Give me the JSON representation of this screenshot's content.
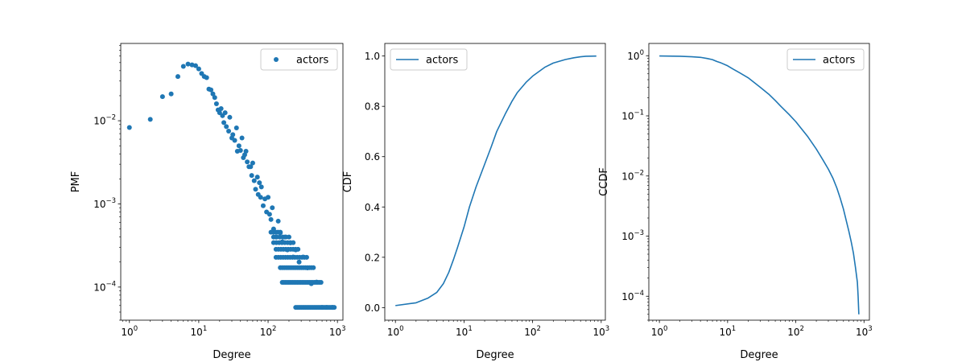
{
  "chart_data": [
    {
      "type": "scatter",
      "xlabel": "Degree",
      "ylabel": "PMF",
      "xscale": "log",
      "yscale": "log",
      "xlim": [
        0.75,
        1200
      ],
      "ylim": [
        4e-05,
        0.085
      ],
      "xticks": [
        {
          "value": 1,
          "base": "10",
          "exp": "0"
        },
        {
          "value": 10,
          "base": "10",
          "exp": "1"
        },
        {
          "value": 100,
          "base": "10",
          "exp": "2"
        },
        {
          "value": 1000,
          "base": "10",
          "exp": "3"
        }
      ],
      "yticks": [
        {
          "value": 0.0001,
          "base": "10",
          "exp": "−4"
        },
        {
          "value": 0.001,
          "base": "10",
          "exp": "−3"
        },
        {
          "value": 0.01,
          "base": "10",
          "exp": "−2"
        }
      ],
      "legend": {
        "position": "top-right"
      },
      "series": [
        {
          "name": "actors",
          "color": "#1f77b4",
          "points": [
            [
              1,
              0.0083
            ],
            [
              2,
              0.0104
            ],
            [
              3,
              0.0195
            ],
            [
              4,
              0.021
            ],
            [
              5,
              0.034
            ],
            [
              6,
              0.045
            ],
            [
              7,
              0.048
            ],
            [
              8,
              0.047
            ],
            [
              9,
              0.046
            ],
            [
              10,
              0.042
            ],
            [
              11,
              0.037
            ],
            [
              12,
              0.034
            ],
            [
              13,
              0.033
            ],
            [
              14,
              0.024
            ],
            [
              15,
              0.0235
            ],
            [
              16,
              0.021
            ],
            [
              17,
              0.019
            ],
            [
              18,
              0.016
            ],
            [
              19,
              0.0135
            ],
            [
              20,
              0.0125
            ],
            [
              21,
              0.014
            ],
            [
              22,
              0.0115
            ],
            [
              23,
              0.0095
            ],
            [
              24,
              0.0125
            ],
            [
              25,
              0.0085
            ],
            [
              27,
              0.0075
            ],
            [
              28,
              0.011
            ],
            [
              30,
              0.0062
            ],
            [
              31,
              0.0068
            ],
            [
              33,
              0.0058
            ],
            [
              35,
              0.0082
            ],
            [
              36,
              0.0043
            ],
            [
              38,
              0.005
            ],
            [
              40,
              0.0044
            ],
            [
              42,
              0.0062
            ],
            [
              44,
              0.0036
            ],
            [
              46,
              0.0039
            ],
            [
              48,
              0.0043
            ],
            [
              50,
              0.0032
            ],
            [
              53,
              0.0028
            ],
            [
              56,
              0.0028
            ],
            [
              58,
              0.0022
            ],
            [
              60,
              0.0031
            ],
            [
              63,
              0.0019
            ],
            [
              66,
              0.0015
            ],
            [
              70,
              0.0021
            ],
            [
              72,
              0.0013
            ],
            [
              75,
              0.0018
            ],
            [
              78,
              0.0012
            ],
            [
              80,
              0.0016
            ],
            [
              85,
              0.00095
            ],
            [
              90,
              0.00115
            ],
            [
              95,
              0.0008
            ],
            [
              100,
              0.0012
            ],
            [
              105,
              0.00075
            ],
            [
              110,
              0.00065
            ],
            [
              115,
              0.0009
            ],
            [
              120,
              0.0005
            ],
            [
              130,
              0.0004
            ],
            [
              140,
              0.00062
            ],
            [
              150,
              0.00045
            ],
            [
              160,
              0.00035
            ],
            [
              175,
              0.0004
            ],
            [
              190,
              0.00028
            ],
            [
              210,
              0.00034
            ],
            [
              230,
              0.00023
            ],
            [
              250,
              0.00028
            ],
            [
              280,
              0.0002
            ],
            [
              320,
              0.00023
            ],
            [
              370,
              0.00017
            ],
            [
              420,
              0.00011
            ],
            [
              500,
              0.000115
            ],
            [
              600,
              5.7e-05
            ],
            [
              700,
              5.7e-05
            ],
            [
              850,
              5.7e-05
            ]
          ],
          "horizontal_runs": [
            {
              "y": 5.7e-05,
              "x_start": 250,
              "x_end": 900,
              "count": 28
            },
            {
              "y": 0.000114,
              "x_start": 160,
              "x_end": 580,
              "count": 24
            },
            {
              "y": 0.000171,
              "x_start": 150,
              "x_end": 450,
              "count": 18
            },
            {
              "y": 0.000228,
              "x_start": 130,
              "x_end": 360,
              "count": 14
            },
            {
              "y": 0.000285,
              "x_start": 130,
              "x_end": 270,
              "count": 10
            },
            {
              "y": 0.000342,
              "x_start": 120,
              "x_end": 230,
              "count": 8
            },
            {
              "y": 0.0004,
              "x_start": 120,
              "x_end": 200,
              "count": 6
            },
            {
              "y": 0.000457,
              "x_start": 110,
              "x_end": 150,
              "count": 5
            }
          ]
        }
      ]
    },
    {
      "type": "line",
      "xlabel": "Degree",
      "ylabel": "CDF",
      "xscale": "log",
      "yscale": "linear",
      "xlim": [
        0.7,
        1150
      ],
      "ylim": [
        -0.05,
        1.05
      ],
      "xticks": [
        {
          "value": 1,
          "base": "10",
          "exp": "0"
        },
        {
          "value": 10,
          "base": "10",
          "exp": "1"
        },
        {
          "value": 100,
          "base": "10",
          "exp": "2"
        },
        {
          "value": 1000,
          "base": "10",
          "exp": "3"
        }
      ],
      "yticks": [
        {
          "value": 0,
          "label": "0.0"
        },
        {
          "value": 0.2,
          "label": "0.2"
        },
        {
          "value": 0.4,
          "label": "0.4"
        },
        {
          "value": 0.6,
          "label": "0.6"
        },
        {
          "value": 0.8,
          "label": "0.8"
        },
        {
          "value": 1.0,
          "label": "1.0"
        }
      ],
      "legend": {
        "position": "top-left"
      },
      "series": [
        {
          "name": "actors",
          "color": "#1f77b4",
          "points": [
            [
              1,
              0.008
            ],
            [
              2,
              0.019
            ],
            [
              3,
              0.038
            ],
            [
              4,
              0.06
            ],
            [
              5,
              0.095
            ],
            [
              6,
              0.14
            ],
            [
              7,
              0.19
            ],
            [
              8,
              0.237
            ],
            [
              10,
              0.32
            ],
            [
              12,
              0.4
            ],
            [
              15,
              0.48
            ],
            [
              20,
              0.57
            ],
            [
              25,
              0.64
            ],
            [
              30,
              0.7
            ],
            [
              40,
              0.77
            ],
            [
              50,
              0.82
            ],
            [
              60,
              0.855
            ],
            [
              80,
              0.895
            ],
            [
              100,
              0.92
            ],
            [
              150,
              0.955
            ],
            [
              200,
              0.972
            ],
            [
              300,
              0.986
            ],
            [
              400,
              0.993
            ],
            [
              500,
              0.997
            ],
            [
              600,
              0.999
            ],
            [
              850,
              1.0
            ]
          ]
        }
      ]
    },
    {
      "type": "line",
      "xlabel": "Degree",
      "ylabel": "CCDF",
      "xscale": "log",
      "yscale": "log",
      "xlim": [
        0.7,
        1200
      ],
      "ylim": [
        4e-05,
        1.6
      ],
      "xticks": [
        {
          "value": 1,
          "base": "10",
          "exp": "0"
        },
        {
          "value": 10,
          "base": "10",
          "exp": "1"
        },
        {
          "value": 100,
          "base": "10",
          "exp": "2"
        },
        {
          "value": 1000,
          "base": "10",
          "exp": "3"
        }
      ],
      "yticks": [
        {
          "value": 0.0001,
          "base": "10",
          "exp": "−4"
        },
        {
          "value": 0.001,
          "base": "10",
          "exp": "−3"
        },
        {
          "value": 0.01,
          "base": "10",
          "exp": "−2"
        },
        {
          "value": 0.1,
          "base": "10",
          "exp": "−1"
        },
        {
          "value": 1,
          "base": "10",
          "exp": "0"
        }
      ],
      "legend": {
        "position": "top-right"
      },
      "series": [
        {
          "name": "actors",
          "color": "#1f77b4",
          "points": [
            [
              1,
              0.992
            ],
            [
              2,
              0.98
            ],
            [
              3,
              0.96
            ],
            [
              4,
              0.94
            ],
            [
              5,
              0.9
            ],
            [
              6,
              0.86
            ],
            [
              7,
              0.8
            ],
            [
              8,
              0.76
            ],
            [
              10,
              0.68
            ],
            [
              12,
              0.6
            ],
            [
              15,
              0.52
            ],
            [
              20,
              0.43
            ],
            [
              30,
              0.3
            ],
            [
              40,
              0.23
            ],
            [
              50,
              0.18
            ],
            [
              60,
              0.145
            ],
            [
              80,
              0.105
            ],
            [
              100,
              0.08
            ],
            [
              150,
              0.045
            ],
            [
              200,
              0.028
            ],
            [
              250,
              0.0185
            ],
            [
              300,
              0.013
            ],
            [
              350,
              0.0092
            ],
            [
              400,
              0.0063
            ],
            [
              450,
              0.0042
            ],
            [
              500,
              0.0028
            ],
            [
              550,
              0.0018
            ],
            [
              600,
              0.0012
            ],
            [
              650,
              0.0008
            ],
            [
              700,
              0.00052
            ],
            [
              750,
              0.0003
            ],
            [
              800,
              0.00017
            ],
            [
              820,
              0.0001
            ],
            [
              840,
              5e-05
            ]
          ]
        }
      ]
    }
  ]
}
